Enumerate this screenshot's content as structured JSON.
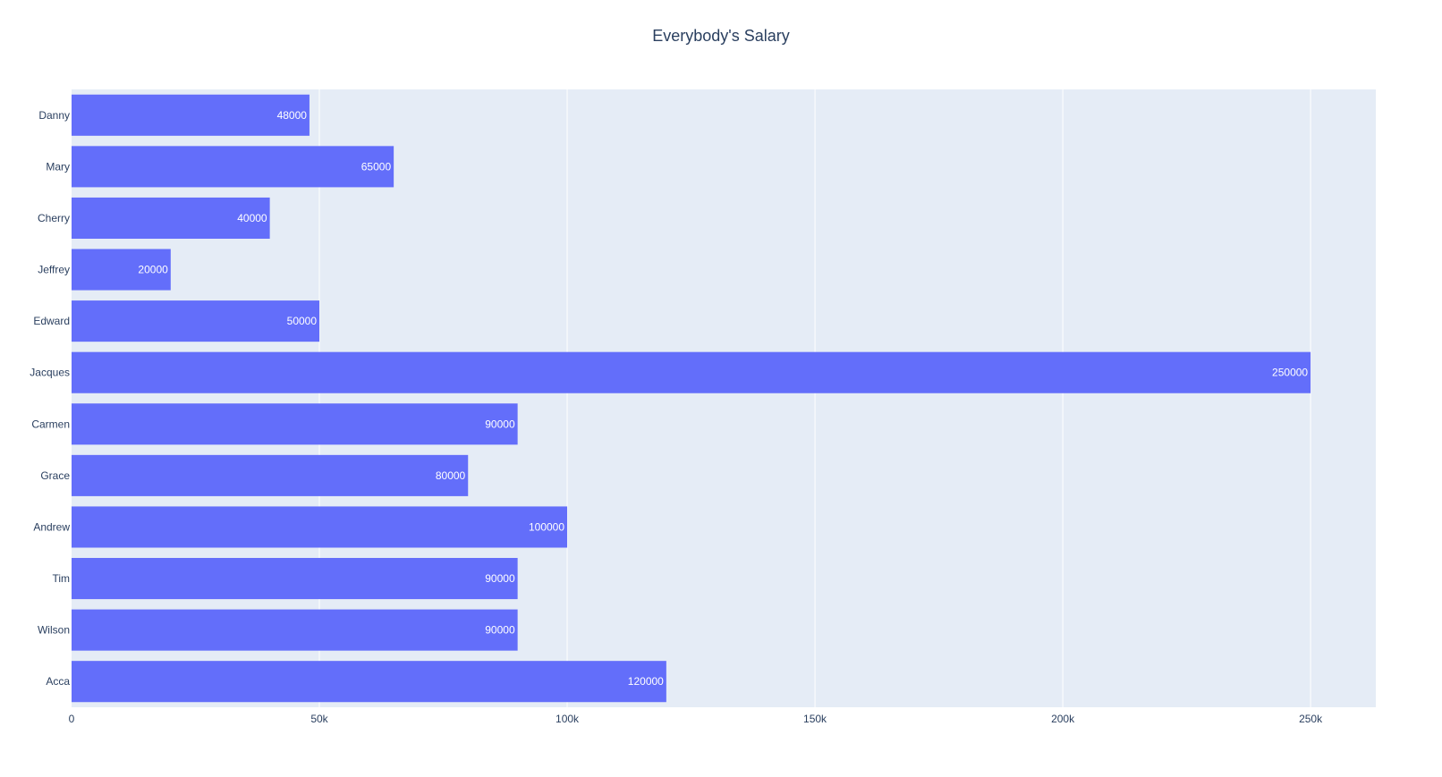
{
  "chart_data": {
    "type": "bar",
    "orientation": "horizontal",
    "title": "Everybody's Salary",
    "xlabel": "",
    "ylabel": "",
    "categories": [
      "Acca",
      "Wilson",
      "Tim",
      "Andrew",
      "Grace",
      "Carmen",
      "Jacques",
      "Edward",
      "Jeffrey",
      "Cherry",
      "Mary",
      "Danny"
    ],
    "values": [
      120000,
      90000,
      90000,
      100000,
      80000,
      90000,
      250000,
      50000,
      20000,
      40000,
      65000,
      48000
    ],
    "value_labels": [
      "120000",
      "90000",
      "90000",
      "100000",
      "80000",
      "90000",
      "250000",
      "50000",
      "20000",
      "40000",
      "65000",
      "48000"
    ],
    "xlim": [
      0,
      263158
    ],
    "x_ticks": [
      0,
      50000,
      100000,
      150000,
      200000,
      250000
    ],
    "x_tick_labels": [
      "0",
      "50k",
      "100k",
      "150k",
      "200k",
      "250k"
    ],
    "grid": true,
    "legend": "none",
    "colors": {
      "bar": "#636efa",
      "plot_background": "#e5ecf6",
      "gridline": "#ffffff",
      "text": "#2a3f5f"
    }
  }
}
